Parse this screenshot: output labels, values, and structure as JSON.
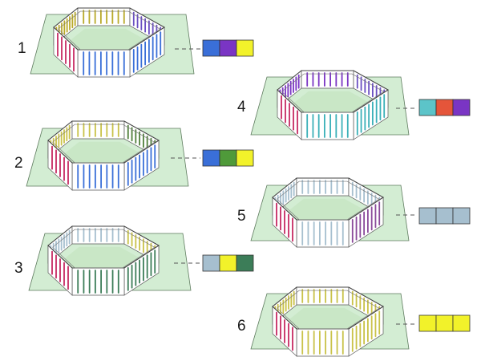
{
  "panels": [
    {
      "number": "1",
      "swatches": [
        "#3a6fd8",
        "#7a35c4",
        "#f2f22a"
      ],
      "walls": [
        "#b9aa2a",
        "#6a4fc2",
        "#3a6fd8",
        "#3a6fd8",
        "#c62a63",
        "#b23a8c"
      ]
    },
    {
      "number": "2",
      "swatches": [
        "#3a6fd8",
        "#4f9a3a",
        "#f2f22a"
      ],
      "walls": [
        "#c9c248",
        "#4f7f3a",
        "#3a6fd8",
        "#3a6fd8",
        "#c62a63",
        "#b23a8c"
      ]
    },
    {
      "number": "3",
      "swatches": [
        "#a6bfcf",
        "#f2f22a",
        "#3c7d58"
      ],
      "walls": [
        "#a6bfcf",
        "#c9c248",
        "#3c7d58",
        "#3c7d58",
        "#c62a63",
        "#b23a8c"
      ]
    },
    {
      "number": "4",
      "swatches": [
        "#5cc4c9",
        "#e5553a",
        "#7a35c4"
      ],
      "walls": [
        "#7a35c4",
        "#6a4fc2",
        "#3ab0b8",
        "#3ab0b8",
        "#c62a63",
        "#b23a8c"
      ]
    },
    {
      "number": "5",
      "swatches": [
        "#a6bfcf",
        "#a6bfcf",
        "#a6bfcf"
      ],
      "walls": [
        "#a6bfcf",
        "#a6bfcf",
        "#8a4a9a",
        "#a6bfcf",
        "#c62a63",
        "#b23a8c"
      ]
    },
    {
      "number": "6",
      "swatches": [
        "#f2f22a",
        "#f2f22a",
        "#f2f22a"
      ],
      "walls": [
        "#c9c248",
        "#c9c248",
        "#c9c248",
        "#c9c248",
        "#c62a63",
        "#b23a8c"
      ]
    }
  ],
  "colors": {
    "ground_fill": "#d3edd3",
    "ground_stroke": "#5d7a5d",
    "dash": "#555555"
  }
}
